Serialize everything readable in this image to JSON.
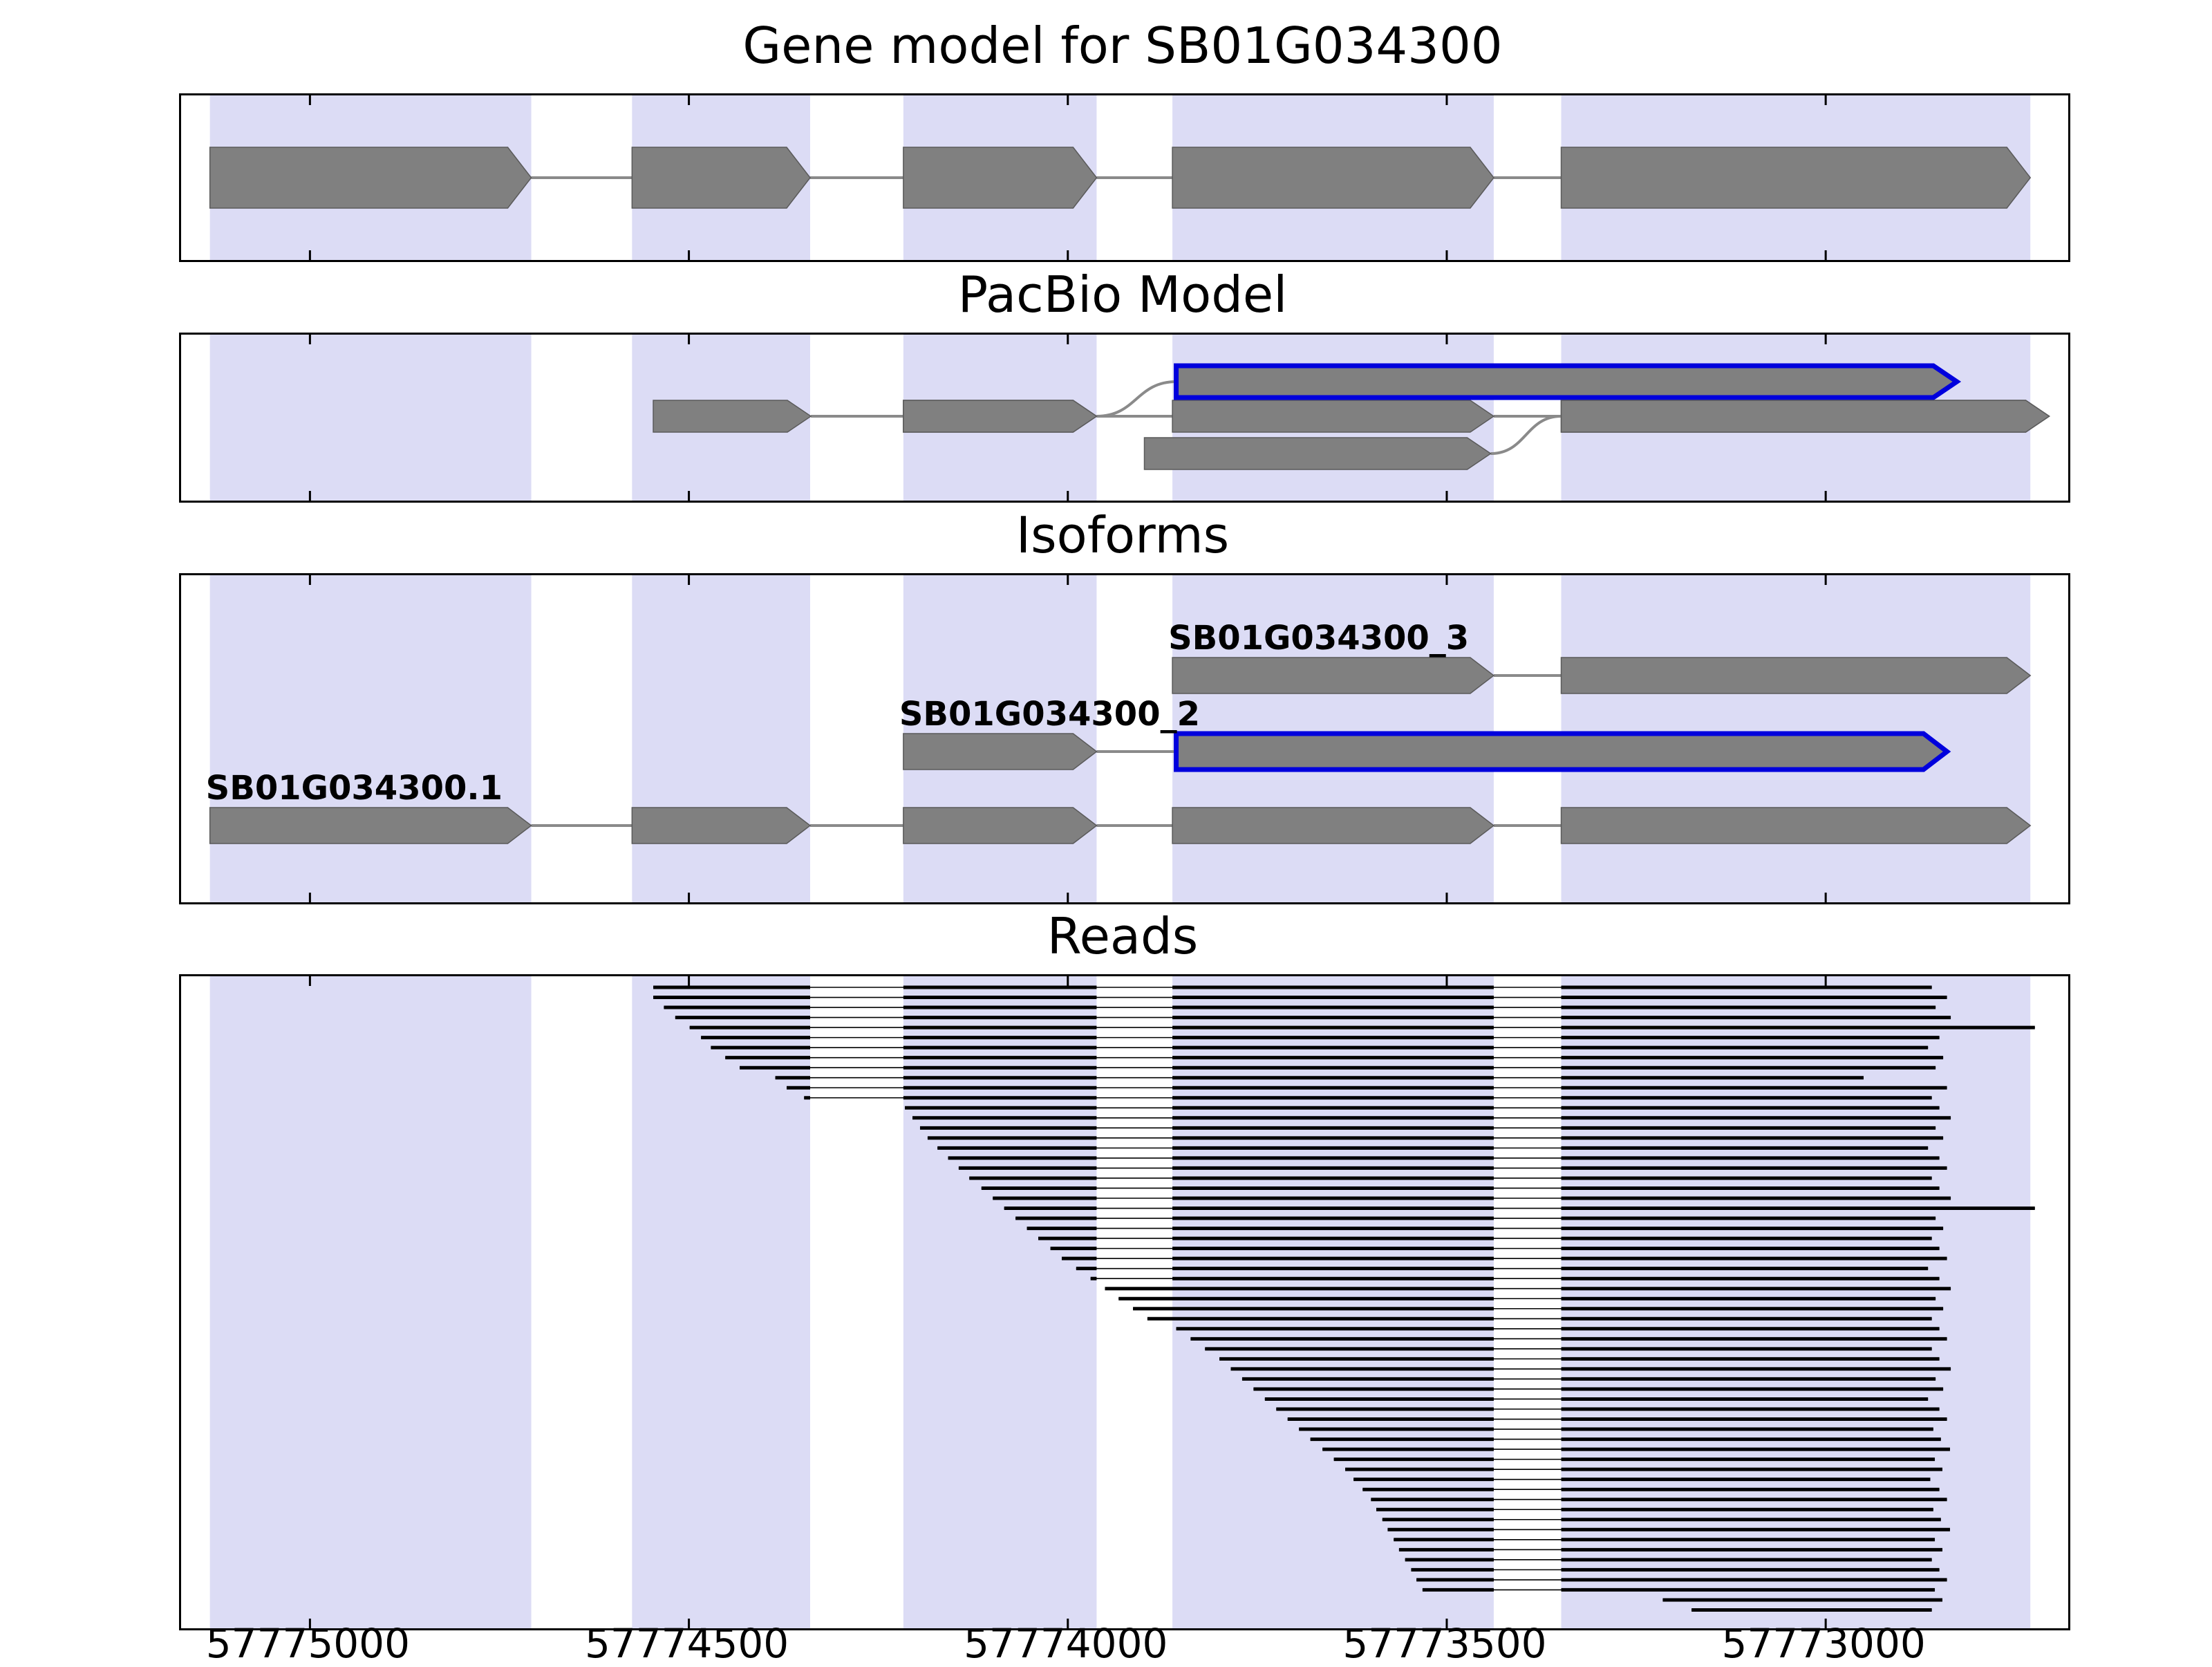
{
  "figure_title": "Gene model for SB01G034300",
  "colors": {
    "band": "#dcdcf5",
    "exon_fill": "#808080",
    "exon_stroke": "#5a5a5a",
    "connector": "#8a8a8a",
    "highlight_outline": "#0000dd",
    "read": "#000000",
    "border": "#000000",
    "background": "#ffffff"
  },
  "chart_data": {
    "type": "genomic-feature-plot",
    "title": "Gene model for SB01G034300",
    "x_axis": {
      "range_left": 57775170,
      "range_right": 57772680,
      "direction": "decreasing",
      "ticks": [
        57775000,
        57774500,
        57774000,
        57773500,
        57773000
      ],
      "tick_labels": [
        "57775000",
        "57774500",
        "57774000",
        "57773500",
        "57773000"
      ]
    },
    "exon_highlight_bands": [
      [
        57775132,
        57774708
      ],
      [
        57774575,
        57774340
      ],
      [
        57774217,
        57773962
      ],
      [
        57773862,
        57773438
      ],
      [
        57773349,
        57772730
      ]
    ],
    "introns": [
      [
        57774340,
        57774217
      ],
      [
        57773962,
        57773862
      ],
      [
        57773438,
        57773349
      ]
    ],
    "tracks": {
      "gene_model": {
        "title": "Gene model for SB01G034300",
        "transcripts": [
          {
            "exons": [
              [
                57775132,
                57774708
              ],
              [
                57774575,
                57774340
              ],
              [
                57774217,
                57773962
              ],
              [
                57773862,
                57773438
              ],
              [
                57773349,
                57772730
              ]
            ],
            "rows": [
              0,
              0,
              0,
              0,
              0
            ],
            "arrow": true
          }
        ]
      },
      "pacbio": {
        "title": "PacBio Model",
        "transcripts": [
          {
            "exons": [
              [
                57774547,
                57774339
              ],
              [
                57774217,
                57773962
              ],
              [
                57773862,
                57773438
              ],
              [
                57773349,
                57772705
              ]
            ],
            "rows": [
              1,
              1,
              1,
              1
            ],
            "arrow": true
          },
          {
            "exons": [
              [
                57774217,
                57773962
              ],
              [
                57773857,
                57772827
              ]
            ],
            "rows": [
              1,
              0
            ],
            "arrow": true,
            "highlight_last": true
          },
          {
            "exons": [
              [
                57773899,
                57773442
              ],
              [
                57773349,
                57772705
              ]
            ],
            "rows": [
              2,
              1
            ],
            "arrow": true
          }
        ]
      },
      "isoforms": {
        "title": "Isoforms",
        "transcripts": [
          {
            "label": "SB01G034300_3",
            "exons": [
              [
                57773862,
                57773438
              ],
              [
                57773349,
                57772730
              ]
            ],
            "rows": [
              0,
              0
            ],
            "arrow": true
          },
          {
            "label": "SB01G034300_2",
            "exons": [
              [
                57774217,
                57773962
              ],
              [
                57773857,
                57772840
              ]
            ],
            "rows": [
              1,
              1
            ],
            "arrow": true,
            "highlight_last": true
          },
          {
            "label": "SB01G034300.1",
            "exons": [
              [
                57775132,
                57774708
              ],
              [
                57774575,
                57774340
              ],
              [
                57774217,
                57773962
              ],
              [
                57773862,
                57773438
              ],
              [
                57773349,
                57772730
              ]
            ],
            "rows": [
              2,
              2,
              2,
              2,
              2
            ],
            "arrow": true
          }
        ]
      },
      "reads": {
        "title": "Reads",
        "reads": [
          [
            57774547,
            57772860
          ],
          [
            57774547,
            57772840
          ],
          [
            57774533,
            57772855
          ],
          [
            57774518,
            57772835
          ],
          [
            57774499,
            57772724
          ],
          [
            57774484,
            57772850
          ],
          [
            57774471,
            57772865
          ],
          [
            57774452,
            57772845
          ],
          [
            57774433,
            57772855
          ],
          [
            57774386,
            57772950
          ],
          [
            57774371,
            57772840
          ],
          [
            57774348,
            57772860
          ],
          [
            57774215,
            57772850
          ],
          [
            57774205,
            57772835
          ],
          [
            57774195,
            57772855
          ],
          [
            57774185,
            57772845
          ],
          [
            57774172,
            57772865
          ],
          [
            57774158,
            57772850
          ],
          [
            57774144,
            57772840
          ],
          [
            57774130,
            57772860
          ],
          [
            57774114,
            57772850
          ],
          [
            57774099,
            57772835
          ],
          [
            57774084,
            57772724
          ],
          [
            57774069,
            57772855
          ],
          [
            57774054,
            57772845
          ],
          [
            57774039,
            57772860
          ],
          [
            57774023,
            57772850
          ],
          [
            57774008,
            57772840
          ],
          [
            57773989,
            57772865
          ],
          [
            57773970,
            57772850
          ],
          [
            57773951,
            57772835
          ],
          [
            57773933,
            57772855
          ],
          [
            57773914,
            57772845
          ],
          [
            57773895,
            57772860
          ],
          [
            57773857,
            57772850
          ],
          [
            57773838,
            57772840
          ],
          [
            57773819,
            57772860
          ],
          [
            57773800,
            57772850
          ],
          [
            57773785,
            57772835
          ],
          [
            57773770,
            57772855
          ],
          [
            57773755,
            57772845
          ],
          [
            57773740,
            57772865
          ],
          [
            57773725,
            57772850
          ],
          [
            57773710,
            57772840
          ],
          [
            57773695,
            57772858
          ],
          [
            57773680,
            57772848
          ],
          [
            57773664,
            57772836
          ],
          [
            57773649,
            57772856
          ],
          [
            57773634,
            57772846
          ],
          [
            57773623,
            57772862
          ],
          [
            57773611,
            57772850
          ],
          [
            57773600,
            57772840
          ],
          [
            57773593,
            57772858
          ],
          [
            57773585,
            57772848
          ],
          [
            57773578,
            57772836
          ],
          [
            57773570,
            57772856
          ],
          [
            57773563,
            57772846
          ],
          [
            57773555,
            57772860
          ],
          [
            57773547,
            57772850
          ],
          [
            57773540,
            57772840
          ],
          [
            57773532,
            57772856
          ],
          [
            57773215,
            57772846
          ],
          [
            57773177,
            57772860
          ]
        ]
      }
    }
  }
}
